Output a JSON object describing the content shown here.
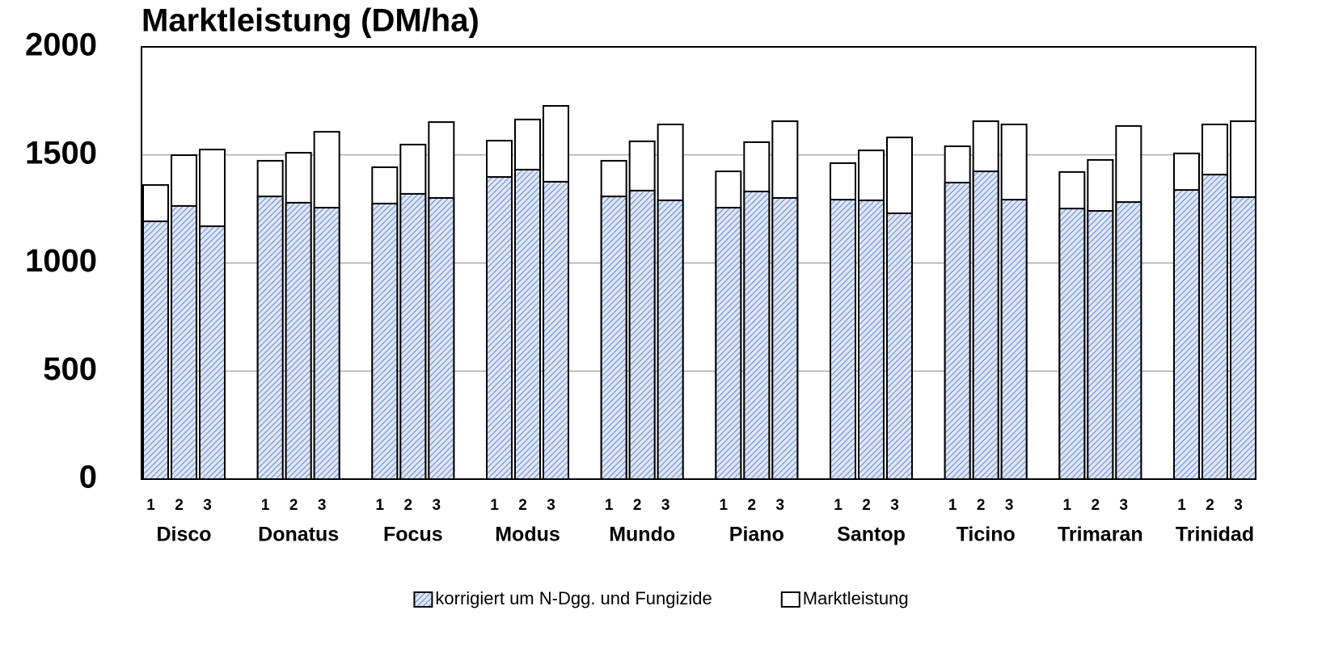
{
  "chart_data": {
    "type": "bar",
    "title": "Marktleistung (DM/ha)",
    "groups": [
      "Disco",
      "Donatus",
      "Focus",
      "Modus",
      "Mundo",
      "Piano",
      "Santop",
      "Ticino",
      "Trimaran",
      "Trinidad"
    ],
    "subcategories": [
      "1",
      "2",
      "3"
    ],
    "series": [
      {
        "name": "Marktleistung",
        "color": "#ffffff",
        "values": [
          1361,
          1499,
          1525,
          1473,
          1510,
          1607,
          1443,
          1548,
          1652,
          1566,
          1664,
          1727,
          1473,
          1563,
          1641,
          1424,
          1559,
          1656,
          1462,
          1521,
          1581,
          1540,
          1656,
          1641,
          1421,
          1477,
          1634,
          1507,
          1641,
          1656
        ]
      },
      {
        "name": "korrigiert um N-Dgg. und Fungizide",
        "color": "#7f9bd6",
        "values": [
          1193,
          1264,
          1170,
          1308,
          1279,
          1256,
          1275,
          1320,
          1301,
          1398,
          1432,
          1376,
          1308,
          1335,
          1290,
          1256,
          1331,
          1301,
          1293,
          1290,
          1230,
          1372,
          1424,
          1293,
          1252,
          1241,
          1282,
          1338,
          1409,
          1305
        ]
      }
    ],
    "ylim": [
      0,
      2000
    ],
    "yticks": [
      0,
      500,
      1000,
      1500,
      2000
    ],
    "grid": true,
    "legend": "bottom"
  }
}
